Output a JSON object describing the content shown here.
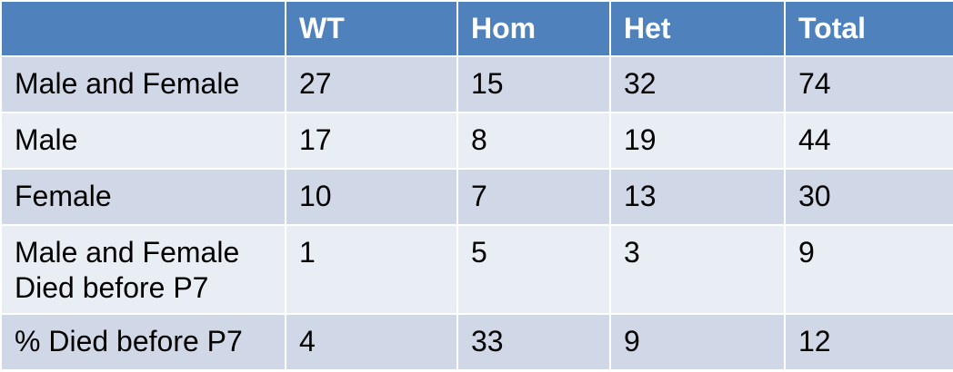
{
  "table": {
    "headers": [
      "",
      "WT",
      "Hom",
      "Het",
      "Total"
    ],
    "rows": [
      {
        "label": [
          "Male and Female"
        ],
        "values": [
          "27",
          "15",
          "32",
          "74"
        ]
      },
      {
        "label": [
          "Male"
        ],
        "values": [
          "17",
          "8",
          "19",
          "44"
        ]
      },
      {
        "label": [
          "Female"
        ],
        "values": [
          "10",
          "7",
          "13",
          "30"
        ]
      },
      {
        "label": [
          "Male and Female",
          "Died before P7"
        ],
        "values": [
          "1",
          "5",
          "3",
          "9"
        ]
      },
      {
        "label": [
          "% Died before P7"
        ],
        "values": [
          "4",
          "33",
          "9",
          "12"
        ]
      }
    ]
  },
  "colors": {
    "header_bg": "#4f81bd",
    "row_odd_bg": "#d0d8e8",
    "row_even_bg": "#e9edf4",
    "header_text": "#ffffff",
    "body_text": "#000000"
  }
}
